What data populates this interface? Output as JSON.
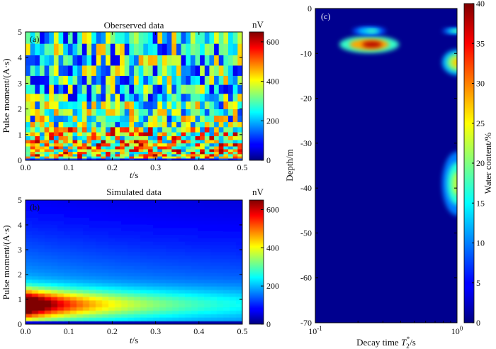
{
  "figure": {
    "panels": {
      "a": {
        "label": "(a)",
        "title": "Oberserved data"
      },
      "b": {
        "label": "(b)",
        "title": "Simulated data"
      },
      "c": {
        "label": "(c)"
      }
    }
  },
  "chart_data": [
    {
      "type": "heatmap",
      "panel": "a",
      "title": "Oberserved data",
      "xlabel": "t/s",
      "ylabel": "Pulse moment/(A·s)",
      "colorbar_label": "nV",
      "xlim": [
        0.0,
        0.5
      ],
      "ylim": [
        0,
        5
      ],
      "clim": [
        0,
        650
      ],
      "xticks": [
        "0.0",
        "0.1",
        "0.2",
        "0.3",
        "0.4",
        "0.5"
      ],
      "yticks": [
        "0",
        "1",
        "2",
        "3",
        "4",
        "5"
      ],
      "cbar_ticks": [
        "0",
        "200",
        "400",
        "600"
      ],
      "colormap": "jet",
      "grid": false,
      "description": "noisy random signal; high amplitude (~400-650 nV) near pulse moments 0.3-1.2 A·s, low-moderate values elsewhere"
    },
    {
      "type": "heatmap",
      "panel": "b",
      "title": "Simulated data",
      "xlabel": "t/s",
      "ylabel": "Pulse moment/(A·s)",
      "colorbar_label": "nV",
      "xlim": [
        0.0,
        0.5
      ],
      "ylim": [
        0,
        5
      ],
      "clim": [
        0,
        650
      ],
      "xticks": [
        "0.0",
        "0.1",
        "0.2",
        "0.3",
        "0.4",
        "0.5"
      ],
      "yticks": [
        "0",
        "1",
        "2",
        "3",
        "4",
        "5"
      ],
      "cbar_ticks": [
        "0",
        "200",
        "400",
        "600"
      ],
      "colormap": "jet",
      "grid": false,
      "peak": {
        "t": 0.0,
        "pulse_moment": 0.8,
        "value": 640
      },
      "description": "smooth decaying signal, maximum at t=0 and pulse moment ≈0.8 A·s, decaying with time and toward higher pulse moments (~150-200 nV)"
    },
    {
      "type": "heatmap",
      "panel": "c",
      "xlabel": "Decay time T2*/s",
      "xlabel_parts": {
        "main": "Decay time ",
        "var": "T",
        "sub": "2",
        "sup": "*",
        "unit": "/s"
      },
      "ylabel": "Depth/m",
      "colorbar_label": "Water content/%",
      "xscale": "log",
      "xlim": [
        0.1,
        1.0
      ],
      "ylim": [
        -70,
        0
      ],
      "clim": [
        0,
        40
      ],
      "xticks": [
        {
          "base": "10",
          "exp": "-1"
        },
        {
          "base": "10",
          "exp": "0"
        }
      ],
      "yticks": [
        "0",
        "-10",
        "-20",
        "-30",
        "-40",
        "-50",
        "-60",
        "-70"
      ],
      "cbar_ticks": [
        "0",
        "5",
        "10",
        "15",
        "20",
        "25",
        "30",
        "35",
        "40"
      ],
      "colormap": "jet",
      "grid": false,
      "features": [
        {
          "T2star_s": 0.24,
          "depth_m": -8,
          "water_content_pct": 38
        },
        {
          "T2star_s": 0.24,
          "depth_m": -5,
          "water_content_pct": 18
        },
        {
          "T2star_s": 1.0,
          "depth_m": -5,
          "water_content_pct": 20
        },
        {
          "T2star_s": 1.0,
          "depth_m": -12,
          "water_content_pct": 27
        },
        {
          "T2star_s": 1.0,
          "depth_m": -39,
          "water_content_pct": 22
        }
      ],
      "background_water_content_pct": 0
    }
  ]
}
